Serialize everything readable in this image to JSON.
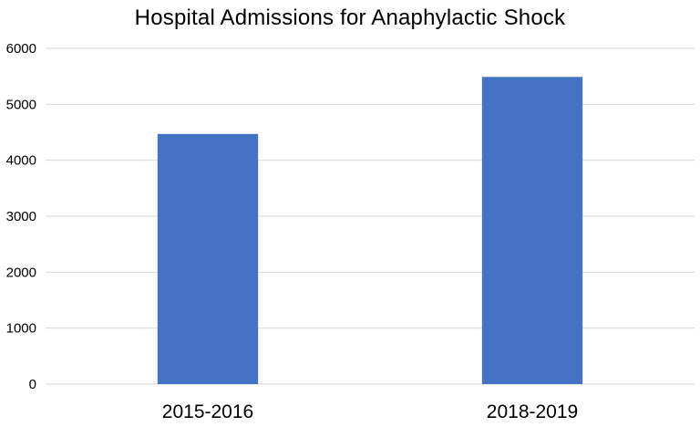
{
  "chart_data": {
    "type": "bar",
    "title": "Hospital Admissions for Anaphylactic Shock",
    "categories": [
      "2015-2016",
      "2018-2019"
    ],
    "values": [
      4470,
      5490
    ],
    "xlabel": "",
    "ylabel": "",
    "ylim": [
      0,
      6000
    ],
    "yticks": [
      0,
      1000,
      2000,
      3000,
      4000,
      5000,
      6000
    ],
    "grid": true,
    "legend": "none",
    "colors": {
      "bar": "#4472C4",
      "grid": "#D9D9D9",
      "text": "#000000"
    }
  }
}
